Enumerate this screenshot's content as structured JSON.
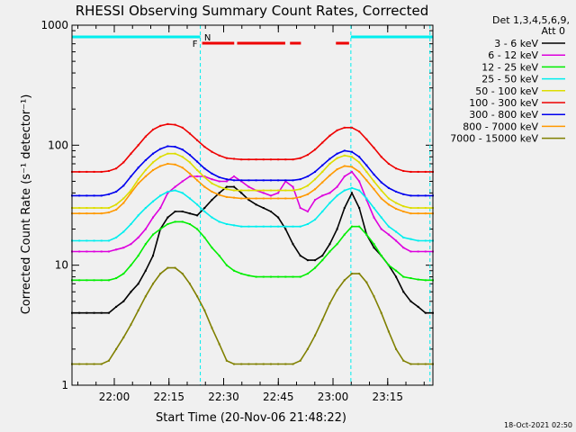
{
  "chart_data": {
    "type": "line",
    "title": "RHESSI Observing Summary Count Rates, Corrected",
    "xlabel": "Start Time (20-Nov-06 21:48:22)",
    "ylabel": "Corrected Count Rate (s⁻¹ detector⁻¹)",
    "y_scale": "log",
    "ylim": [
      1,
      1000
    ],
    "xlim_minutes": [
      0,
      99
    ],
    "x_tick_labels": [
      {
        "label": "22:00",
        "minutes": 11.6
      },
      {
        "label": "22:15",
        "minutes": 26.6
      },
      {
        "label": "22:30",
        "minutes": 41.6
      },
      {
        "label": "22:45",
        "minutes": 56.6
      },
      {
        "label": "23:00",
        "minutes": 71.6
      },
      {
        "label": "23:15",
        "minutes": 86.6
      }
    ],
    "y_tick_labels": [
      {
        "label": "1",
        "value": 1
      },
      {
        "label": "10",
        "value": 10
      },
      {
        "label": "100",
        "value": 100
      },
      {
        "label": "1000",
        "value": 1000
      }
    ],
    "legend": {
      "placement": "right",
      "header_line1": "Det 1,3,4,5,6,9,",
      "header_line2": "Att 0"
    },
    "series": [
      {
        "name": "3 - 6 keV",
        "color": "#000000",
        "values": [
          4,
          4,
          4,
          4,
          4,
          4,
          4.5,
          5,
          6,
          7,
          9,
          12,
          20,
          25,
          28,
          28,
          27,
          26,
          30,
          35,
          40,
          45,
          45,
          40,
          35,
          32,
          30,
          28,
          25,
          20,
          15,
          12,
          11,
          11,
          12,
          15,
          20,
          30,
          40,
          30,
          18,
          14,
          12,
          10,
          8,
          6,
          5,
          4.5,
          4,
          4
        ]
      },
      {
        "name": "6 - 12 keV",
        "color": "#dd00dd",
        "values": [
          13,
          13,
          13,
          13,
          13,
          13,
          13.5,
          14,
          15,
          17,
          20,
          25,
          30,
          40,
          45,
          50,
          55,
          55,
          55,
          52,
          50,
          50,
          55,
          50,
          45,
          42,
          40,
          38,
          40,
          50,
          45,
          30,
          28,
          35,
          38,
          40,
          45,
          55,
          60,
          50,
          35,
          25,
          20,
          18,
          16,
          14,
          13,
          13,
          13,
          13
        ]
      },
      {
        "name": "12 - 25 keV",
        "color": "#00ee00",
        "values": [
          7.5,
          7.5,
          7.5,
          7.5,
          7.5,
          7.5,
          7.8,
          8.5,
          10,
          12,
          15,
          18,
          20,
          22,
          23,
          23,
          22,
          20,
          17,
          14,
          12,
          10,
          9,
          8.5,
          8.2,
          8,
          8,
          8,
          8,
          8,
          8,
          8,
          8.5,
          9.5,
          11,
          13,
          15,
          18,
          21,
          21,
          18,
          15,
          12,
          10,
          9,
          8,
          7.8,
          7.6,
          7.5,
          7.5
        ]
      },
      {
        "name": "25 - 50 keV",
        "color": "#00eeee",
        "values": [
          16,
          16,
          16,
          16,
          16,
          16,
          17,
          19,
          22,
          26,
          30,
          34,
          38,
          41,
          42,
          40,
          36,
          32,
          28,
          25,
          23,
          22,
          21.5,
          21,
          21,
          21,
          21,
          21,
          21,
          21,
          21,
          21,
          22,
          24,
          28,
          33,
          38,
          42,
          44,
          42,
          36,
          30,
          25,
          21,
          19,
          17,
          16.5,
          16,
          16,
          16
        ]
      },
      {
        "name": "50 - 100 keV",
        "color": "#dddd00",
        "values": [
          30,
          30,
          30,
          30,
          30,
          30,
          32,
          36,
          42,
          52,
          62,
          72,
          80,
          85,
          85,
          80,
          72,
          62,
          54,
          48,
          45,
          43,
          42,
          42,
          42,
          42,
          42,
          42,
          42,
          42,
          42,
          43,
          46,
          52,
          60,
          70,
          78,
          82,
          80,
          72,
          60,
          50,
          42,
          36,
          33,
          31,
          30,
          30,
          30,
          30
        ]
      },
      {
        "name": "100 - 300 keV",
        "color": "#ee0000",
        "values": [
          60,
          60,
          60,
          60,
          60,
          61,
          64,
          72,
          85,
          100,
          118,
          135,
          145,
          150,
          148,
          140,
          125,
          110,
          97,
          88,
          82,
          78,
          77,
          76,
          76,
          76,
          76,
          76,
          76,
          76,
          76,
          78,
          83,
          92,
          105,
          120,
          133,
          140,
          140,
          130,
          112,
          95,
          80,
          70,
          64,
          61,
          60,
          60,
          60,
          60
        ]
      },
      {
        "name": "300 - 800 keV",
        "color": "#0000ee",
        "values": [
          38,
          38,
          38,
          38,
          38,
          39,
          41,
          46,
          55,
          65,
          75,
          85,
          93,
          98,
          97,
          92,
          83,
          73,
          64,
          58,
          54,
          52,
          51,
          51,
          51,
          51,
          51,
          51,
          51,
          51,
          51,
          52,
          55,
          60,
          68,
          77,
          85,
          90,
          88,
          80,
          68,
          57,
          49,
          44,
          41,
          39,
          38,
          38,
          38,
          38
        ]
      },
      {
        "name": "800 - 7000 keV",
        "color": "#ff9900",
        "values": [
          27,
          27,
          27,
          27,
          27,
          27.5,
          29,
          33,
          40,
          48,
          55,
          62,
          67,
          70,
          69,
          65,
          58,
          51,
          45,
          41,
          38.5,
          37,
          36.5,
          36,
          36,
          36,
          36,
          36,
          36,
          36,
          36,
          37,
          39,
          43,
          49,
          56,
          63,
          67,
          66,
          60,
          51,
          43,
          36,
          32,
          29.5,
          28,
          27,
          27,
          27,
          27
        ]
      },
      {
        "name": "7000 - 15000 keV",
        "color": "#808000",
        "values": [
          1.5,
          1.5,
          1.5,
          1.5,
          1.5,
          1.6,
          2,
          2.5,
          3.2,
          4.2,
          5.5,
          7,
          8.5,
          9.5,
          9.5,
          8.5,
          7,
          5.5,
          4.2,
          3,
          2.2,
          1.6,
          1.5,
          1.5,
          1.5,
          1.5,
          1.5,
          1.5,
          1.5,
          1.5,
          1.5,
          1.6,
          2,
          2.6,
          3.5,
          4.8,
          6.2,
          7.5,
          8.5,
          8.5,
          7.2,
          5.5,
          4,
          2.8,
          2,
          1.6,
          1.5,
          1.5,
          1.5,
          1.5
        ]
      }
    ],
    "state_bars": [
      {
        "label": "N",
        "color": "#00eeee",
        "segments": [
          [
            0,
            35.2
          ],
          [
            76.5,
            99
          ]
        ]
      },
      {
        "label": "F",
        "color": "#ee0000",
        "segments": [
          [
            35.7,
            44.5
          ],
          [
            45.3,
            58.5
          ],
          [
            59.8,
            62.8
          ],
          [
            72.4,
            76.0
          ]
        ]
      }
    ],
    "vertical_markers": [
      {
        "color": "#00eeee",
        "minutes": 35.2
      },
      {
        "color": "#00eeee",
        "minutes": 76.5
      },
      {
        "color": "#00eeee",
        "minutes": 98.2
      }
    ],
    "footer_date": "18-Oct-2021 02:50"
  }
}
